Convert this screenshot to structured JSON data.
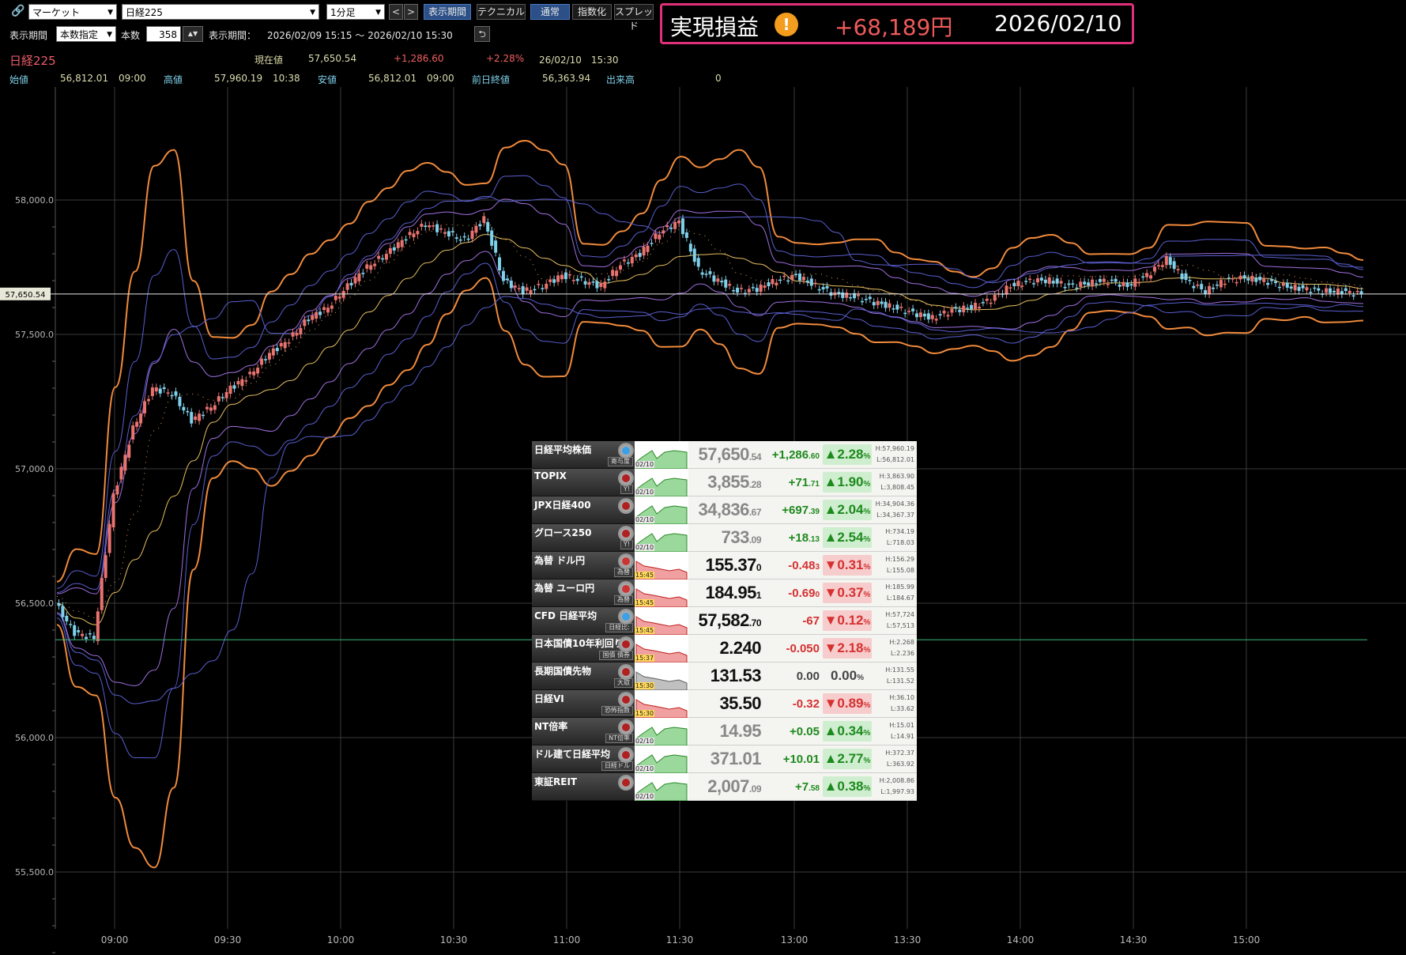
{
  "toolbar": {
    "market_select": "マーケット",
    "symbol_select": "日経225",
    "interval_select": "1分足",
    "prev": "<",
    "next": ">",
    "btn_period": "表示期間",
    "btn_technical": "テクニカル",
    "btn_normal": "通常",
    "btn_index": "指数化",
    "btn_spread": "スプレッド",
    "period_label": "表示期間",
    "period_mode": "本数指定",
    "count_label": "本数",
    "count_value": "358",
    "range_label": "表示期間：",
    "range_value": "2026/02/09 15:15 〜 2026/02/10 15:30"
  },
  "pnl": {
    "label": "実現損益",
    "icon": "!",
    "value": "+68,189円",
    "date": "2026/02/10"
  },
  "quote": {
    "symbol": "日経225",
    "current_label": "現在値",
    "current": "57,650.54",
    "change": "+1,286.60",
    "change_pct": "+2.28%",
    "time": "26/02/10　15:30",
    "open_label": "始値",
    "open": "56,812.01",
    "open_time": "09:00",
    "high_label": "高値",
    "high": "57,960.19",
    "high_time": "10:38",
    "low_label": "安値",
    "low": "56,812.01",
    "low_time": "09:00",
    "prev_label": "前日終値",
    "prev": "56,363.94",
    "volume_label": "出来高",
    "volume": "0"
  },
  "chart_data": {
    "type": "line",
    "title": "",
    "ylim": [
      55400,
      58400
    ],
    "y_ticks": [
      "58,000.0",
      "57,500.0",
      "57,000.0",
      "56,500.0",
      "56,000.0",
      "55,500.0"
    ],
    "x_ticks": [
      "09:00",
      "09:30",
      "10:00",
      "10:30",
      "11:00",
      "11:30",
      "13:00",
      "13:30",
      "14:00",
      "14:30",
      "15:00"
    ],
    "current_label": "57,650.54",
    "current_value": 57650.54,
    "prev_close": 56363.94,
    "x": [
      "08:50",
      "08:55",
      "09:00",
      "09:05",
      "09:10",
      "09:15",
      "09:20",
      "09:25",
      "09:30",
      "09:35",
      "09:40",
      "09:45",
      "09:50",
      "09:55",
      "10:00",
      "10:05",
      "10:10",
      "10:15",
      "10:20",
      "10:25",
      "10:30",
      "10:35",
      "10:40",
      "10:45",
      "10:50",
      "10:55",
      "11:00",
      "11:05",
      "11:10",
      "11:15",
      "11:20",
      "11:25",
      "11:30",
      "12:35",
      "12:40",
      "12:45",
      "12:50",
      "12:55",
      "13:00",
      "13:05",
      "13:10",
      "13:15",
      "13:20",
      "13:25",
      "13:30",
      "13:35",
      "13:40",
      "13:45",
      "13:50",
      "13:55",
      "14:00",
      "14:05",
      "14:10",
      "14:15",
      "14:20",
      "14:25",
      "14:30",
      "14:35",
      "14:40",
      "14:45",
      "14:50",
      "14:55",
      "15:00",
      "15:05",
      "15:10",
      "15:15",
      "15:20",
      "15:25"
    ],
    "series": [
      {
        "name": "",
        "values": [
          56500,
          56390,
          56370,
          56900,
          57150,
          57300,
          57280,
          57180,
          57230,
          57300,
          57350,
          57430,
          57480,
          57560,
          57600,
          57680,
          57750,
          57800,
          57860,
          57910,
          57880,
          57850,
          57930,
          57700,
          57660,
          57680,
          57720,
          57700,
          57680,
          57760,
          57800,
          57880,
          57920,
          57740,
          57700,
          57660,
          57670,
          57700,
          57720,
          57680,
          57650,
          57640,
          57620,
          57600,
          57580,
          57560,
          57590,
          57600,
          57630,
          57680,
          57700,
          57700,
          57680,
          57690,
          57700,
          57680,
          57720,
          57780,
          57700,
          57660,
          57700,
          57710,
          57700,
          57680,
          57670,
          57660,
          57660,
          57650
        ]
      }
    ]
  },
  "market": [
    {
      "name": "日経平均株価",
      "sub": "寄与度",
      "date": "02/10",
      "price_main": "57,650",
      "price_dec": ".54",
      "chg_main": "+1,286",
      "chg_dec": ".60",
      "pct": "▲2.28",
      "high": "H:57,960.19",
      "low": "L:56,812.01",
      "dir": "up",
      "dark": false,
      "icon": "x"
    },
    {
      "name": "TOPIX",
      "sub": "Y!",
      "date": "02/10",
      "price_main": "3,855",
      "price_dec": ".28",
      "chg_main": "+71",
      "chg_dec": ".71",
      "pct": "▲1.90",
      "high": "H:3,863.90",
      "low": "L:3,808.45",
      "dir": "up",
      "dark": false,
      "icon": ""
    },
    {
      "name": "JPX日経400",
      "sub": "",
      "date": "02/10",
      "price_main": "34,836",
      "price_dec": ".67",
      "chg_main": "+697",
      "chg_dec": ".39",
      "pct": "▲2.04",
      "high": "H:34,904.36",
      "low": "L:34,367.37",
      "dir": "up",
      "dark": false,
      "icon": ""
    },
    {
      "name": "グロース250",
      "sub": "Y!",
      "date": "02/10",
      "price_main": "733",
      "price_dec": ".09",
      "chg_main": "+18",
      "chg_dec": ".13",
      "pct": "▲2.54",
      "high": "H:734.19",
      "low": "L:718.03",
      "dir": "up",
      "dark": false,
      "icon": ""
    },
    {
      "name": "為替 ドル円",
      "sub": "為替",
      "date": "15:45",
      "price_main": "155.37",
      "price_dec": "0",
      "chg_main": "-0.48",
      "chg_dec": "3",
      "pct": "▼0.31",
      "high": "H:156.29",
      "low": "L:155.08",
      "dir": "dn",
      "dark": true,
      "icon": "us"
    },
    {
      "name": "為替 ユーロ円",
      "sub": "為替",
      "date": "15:45",
      "price_main": "184.95",
      "price_dec": "1",
      "chg_main": "-0.69",
      "chg_dec": "0",
      "pct": "▼0.37",
      "high": "H:185.99",
      "low": "L:184.67",
      "dir": "dn",
      "dark": true,
      "icon": "eu"
    },
    {
      "name": "CFD 日経平均",
      "sub": "日経比:",
      "date": "15:45",
      "price_main": "57,582",
      "price_dec": ".70",
      "chg_main": "-67",
      "chg_dec": "",
      "pct": "▼0.12",
      "high": "H:57,724",
      "low": "L:57,513",
      "dir": "dn",
      "dark": true,
      "icon": "x"
    },
    {
      "name": "日本国債10年利回り",
      "sub": "国債 債券",
      "date": "15:37",
      "price_main": "2.240",
      "price_dec": "",
      "chg_main": "-0.050",
      "chg_dec": "",
      "pct": "▼2.18",
      "high": "H:2.268",
      "low": "L:2.236",
      "dir": "dn",
      "dark": true,
      "icon": ""
    },
    {
      "name": "長期国債先物",
      "sub": "大取",
      "date": "15:30",
      "price_main": "131.53",
      "price_dec": "",
      "chg_main": "0.00",
      "chg_dec": "",
      "pct": "0.00",
      "high": "H:131.55",
      "low": "L:131.52",
      "dir": "flat",
      "dark": true,
      "icon": ""
    },
    {
      "name": "日経VI",
      "sub": "恐怖指数",
      "date": "15:30",
      "price_main": "35.50",
      "price_dec": "",
      "chg_main": "-0.32",
      "chg_dec": "",
      "pct": "▼0.89",
      "high": "H:36.10",
      "low": "L:33.62",
      "dir": "dn",
      "dark": true,
      "icon": "vi"
    },
    {
      "name": "NT倍率",
      "sub": "NT倍率",
      "date": "02/10",
      "price_main": "14.95",
      "price_dec": "",
      "chg_main": "+0.05",
      "chg_dec": "",
      "pct": "▲0.34",
      "high": "H:15.01",
      "low": "L:14.91",
      "dir": "up",
      "dark": false,
      "icon": ""
    },
    {
      "name": "ドル建て日経平均",
      "sub": "日経ドル",
      "date": "02/10",
      "price_main": "371.01",
      "price_dec": "",
      "chg_main": "+10.01",
      "chg_dec": "",
      "pct": "▲2.77",
      "high": "H:372.37",
      "low": "L:363.92",
      "dir": "up",
      "dark": false,
      "icon": ""
    },
    {
      "name": "東証REIT",
      "sub": "",
      "date": "02/10",
      "price_main": "2,007",
      "price_dec": ".09",
      "chg_main": "+7",
      "chg_dec": ".58",
      "pct": "▲0.38",
      "high": "H:2,008.86",
      "low": "L:1,997.93",
      "dir": "up",
      "dark": false,
      "icon": ""
    }
  ],
  "colors": {
    "up_candle": "#e8736f",
    "down_candle": "#7fd0ea",
    "outer_band": "#f08a3c",
    "mid_band": "#5a5fd0",
    "inner_band": "#a070e0",
    "ma": "#e8c060",
    "prev_close_line": "#3cb878",
    "pnl_border": "#e0307a",
    "pnl_value": "#f05a5a"
  }
}
